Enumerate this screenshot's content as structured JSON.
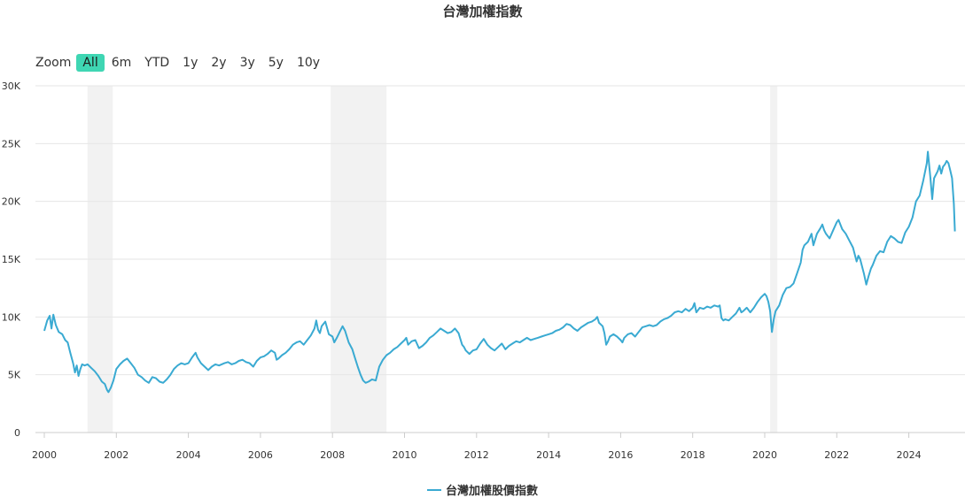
{
  "title": "台灣加權指數",
  "zoom": {
    "label": "Zoom",
    "buttons": [
      "All",
      "6m",
      "YTD",
      "1y",
      "2y",
      "3y",
      "5y",
      "10y"
    ],
    "active": "All"
  },
  "legend_label": "台灣加權股價指數",
  "colors": {
    "line": "#3aaad2",
    "active_button": "#3fd6b3",
    "recession_band": "#f2f2f2",
    "grid": "#e6e6e6"
  },
  "chart_data": {
    "type": "line",
    "title": "台灣加權指數",
    "xlabel": "",
    "ylabel": "",
    "xlim": [
      2000,
      2025.5
    ],
    "ylim": [
      0,
      30000
    ],
    "x_ticks": [
      "2000",
      "2002",
      "2004",
      "2006",
      "2008",
      "2010",
      "2012",
      "2014",
      "2016",
      "2018",
      "2020",
      "2022",
      "2024"
    ],
    "y_ticks": [
      {
        "value": 0,
        "label": "0"
      },
      {
        "value": 5000,
        "label": "5K"
      },
      {
        "value": 10000,
        "label": "10K"
      },
      {
        "value": 15000,
        "label": "15K"
      },
      {
        "value": 20000,
        "label": "20K"
      },
      {
        "value": 25000,
        "label": "25K"
      },
      {
        "value": 30000,
        "label": "30K"
      }
    ],
    "shaded_periods": [
      [
        2001.2,
        2001.9
      ],
      [
        2007.95,
        2009.5
      ],
      [
        2020.15,
        2020.35
      ]
    ],
    "grid": true,
    "legend_position": "bottom-center",
    "series": [
      {
        "name": "台灣加權股價指數",
        "points": [
          [
            2000.0,
            8800
          ],
          [
            2000.08,
            9700
          ],
          [
            2000.15,
            10100
          ],
          [
            2000.2,
            9000
          ],
          [
            2000.25,
            10200
          ],
          [
            2000.32,
            9300
          ],
          [
            2000.4,
            8700
          ],
          [
            2000.5,
            8500
          ],
          [
            2000.58,
            8000
          ],
          [
            2000.65,
            7800
          ],
          [
            2000.72,
            6900
          ],
          [
            2000.8,
            6000
          ],
          [
            2000.85,
            5200
          ],
          [
            2000.9,
            5800
          ],
          [
            2000.95,
            4900
          ],
          [
            2001.0,
            5500
          ],
          [
            2001.05,
            5900
          ],
          [
            2001.12,
            5800
          ],
          [
            2001.2,
            5900
          ],
          [
            2001.3,
            5600
          ],
          [
            2001.4,
            5300
          ],
          [
            2001.5,
            4900
          ],
          [
            2001.6,
            4400
          ],
          [
            2001.68,
            4200
          ],
          [
            2001.74,
            3700
          ],
          [
            2001.78,
            3500
          ],
          [
            2001.85,
            3900
          ],
          [
            2001.92,
            4500
          ],
          [
            2002.0,
            5500
          ],
          [
            2002.1,
            5900
          ],
          [
            2002.2,
            6200
          ],
          [
            2002.3,
            6400
          ],
          [
            2002.4,
            6000
          ],
          [
            2002.5,
            5600
          ],
          [
            2002.6,
            5000
          ],
          [
            2002.7,
            4800
          ],
          [
            2002.8,
            4500
          ],
          [
            2002.9,
            4300
          ],
          [
            2003.0,
            4800
          ],
          [
            2003.1,
            4700
          ],
          [
            2003.2,
            4400
          ],
          [
            2003.3,
            4300
          ],
          [
            2003.4,
            4600
          ],
          [
            2003.5,
            5000
          ],
          [
            2003.6,
            5500
          ],
          [
            2003.7,
            5800
          ],
          [
            2003.8,
            6000
          ],
          [
            2003.9,
            5900
          ],
          [
            2004.0,
            6000
          ],
          [
            2004.1,
            6500
          ],
          [
            2004.2,
            6900
          ],
          [
            2004.25,
            6500
          ],
          [
            2004.35,
            6000
          ],
          [
            2004.45,
            5700
          ],
          [
            2004.55,
            5400
          ],
          [
            2004.65,
            5700
          ],
          [
            2004.75,
            5900
          ],
          [
            2004.85,
            5800
          ],
          [
            2005.0,
            6000
          ],
          [
            2005.1,
            6100
          ],
          [
            2005.2,
            5900
          ],
          [
            2005.3,
            6000
          ],
          [
            2005.4,
            6200
          ],
          [
            2005.5,
            6300
          ],
          [
            2005.6,
            6100
          ],
          [
            2005.7,
            6000
          ],
          [
            2005.8,
            5700
          ],
          [
            2005.9,
            6200
          ],
          [
            2006.0,
            6500
          ],
          [
            2006.1,
            6600
          ],
          [
            2006.2,
            6800
          ],
          [
            2006.3,
            7100
          ],
          [
            2006.4,
            6900
          ],
          [
            2006.45,
            6300
          ],
          [
            2006.5,
            6400
          ],
          [
            2006.6,
            6700
          ],
          [
            2006.7,
            6900
          ],
          [
            2006.8,
            7200
          ],
          [
            2006.9,
            7600
          ],
          [
            2007.0,
            7800
          ],
          [
            2007.1,
            7900
          ],
          [
            2007.2,
            7600
          ],
          [
            2007.3,
            8000
          ],
          [
            2007.4,
            8400
          ],
          [
            2007.5,
            9000
          ],
          [
            2007.55,
            9700
          ],
          [
            2007.6,
            8900
          ],
          [
            2007.65,
            8600
          ],
          [
            2007.7,
            9200
          ],
          [
            2007.8,
            9600
          ],
          [
            2007.9,
            8500
          ],
          [
            2008.0,
            8300
          ],
          [
            2008.05,
            7800
          ],
          [
            2008.12,
            8200
          ],
          [
            2008.2,
            8700
          ],
          [
            2008.28,
            9200
          ],
          [
            2008.35,
            8800
          ],
          [
            2008.45,
            7800
          ],
          [
            2008.55,
            7200
          ],
          [
            2008.62,
            6500
          ],
          [
            2008.7,
            5700
          ],
          [
            2008.78,
            5000
          ],
          [
            2008.85,
            4500
          ],
          [
            2008.92,
            4300
          ],
          [
            2009.0,
            4400
          ],
          [
            2009.1,
            4600
          ],
          [
            2009.2,
            4500
          ],
          [
            2009.3,
            5700
          ],
          [
            2009.4,
            6300
          ],
          [
            2009.5,
            6700
          ],
          [
            2009.6,
            6900
          ],
          [
            2009.7,
            7200
          ],
          [
            2009.8,
            7400
          ],
          [
            2009.9,
            7700
          ],
          [
            2010.0,
            8000
          ],
          [
            2010.05,
            8200
          ],
          [
            2010.1,
            7600
          ],
          [
            2010.2,
            7900
          ],
          [
            2010.3,
            8000
          ],
          [
            2010.4,
            7300
          ],
          [
            2010.5,
            7500
          ],
          [
            2010.6,
            7800
          ],
          [
            2010.7,
            8200
          ],
          [
            2010.8,
            8400
          ],
          [
            2010.9,
            8700
          ],
          [
            2011.0,
            9000
          ],
          [
            2011.1,
            8800
          ],
          [
            2011.2,
            8600
          ],
          [
            2011.3,
            8700
          ],
          [
            2011.4,
            9000
          ],
          [
            2011.5,
            8600
          ],
          [
            2011.6,
            7600
          ],
          [
            2011.65,
            7400
          ],
          [
            2011.7,
            7100
          ],
          [
            2011.8,
            6800
          ],
          [
            2011.9,
            7100
          ],
          [
            2012.0,
            7200
          ],
          [
            2012.1,
            7700
          ],
          [
            2012.2,
            8100
          ],
          [
            2012.3,
            7600
          ],
          [
            2012.4,
            7300
          ],
          [
            2012.5,
            7100
          ],
          [
            2012.6,
            7400
          ],
          [
            2012.7,
            7700
          ],
          [
            2012.8,
            7200
          ],
          [
            2012.9,
            7500
          ],
          [
            2013.0,
            7700
          ],
          [
            2013.1,
            7900
          ],
          [
            2013.2,
            7800
          ],
          [
            2013.3,
            8000
          ],
          [
            2013.4,
            8200
          ],
          [
            2013.5,
            8000
          ],
          [
            2013.6,
            8100
          ],
          [
            2013.7,
            8200
          ],
          [
            2013.8,
            8300
          ],
          [
            2013.9,
            8400
          ],
          [
            2014.0,
            8500
          ],
          [
            2014.1,
            8600
          ],
          [
            2014.2,
            8800
          ],
          [
            2014.3,
            8900
          ],
          [
            2014.4,
            9100
          ],
          [
            2014.5,
            9400
          ],
          [
            2014.6,
            9300
          ],
          [
            2014.7,
            9000
          ],
          [
            2014.8,
            8800
          ],
          [
            2014.9,
            9100
          ],
          [
            2015.0,
            9300
          ],
          [
            2015.1,
            9500
          ],
          [
            2015.2,
            9600
          ],
          [
            2015.3,
            9800
          ],
          [
            2015.35,
            10000
          ],
          [
            2015.4,
            9500
          ],
          [
            2015.5,
            9200
          ],
          [
            2015.55,
            8600
          ],
          [
            2015.6,
            7600
          ],
          [
            2015.65,
            7900
          ],
          [
            2015.7,
            8300
          ],
          [
            2015.8,
            8500
          ],
          [
            2015.9,
            8300
          ],
          [
            2016.0,
            8000
          ],
          [
            2016.05,
            7800
          ],
          [
            2016.1,
            8200
          ],
          [
            2016.2,
            8500
          ],
          [
            2016.3,
            8600
          ],
          [
            2016.4,
            8300
          ],
          [
            2016.5,
            8700
          ],
          [
            2016.6,
            9100
          ],
          [
            2016.7,
            9200
          ],
          [
            2016.8,
            9300
          ],
          [
            2016.9,
            9200
          ],
          [
            2017.0,
            9300
          ],
          [
            2017.1,
            9600
          ],
          [
            2017.2,
            9800
          ],
          [
            2017.3,
            9900
          ],
          [
            2017.4,
            10100
          ],
          [
            2017.5,
            10400
          ],
          [
            2017.6,
            10500
          ],
          [
            2017.7,
            10400
          ],
          [
            2017.8,
            10700
          ],
          [
            2017.9,
            10500
          ],
          [
            2018.0,
            10800
          ],
          [
            2018.05,
            11200
          ],
          [
            2018.1,
            10400
          ],
          [
            2018.2,
            10800
          ],
          [
            2018.3,
            10700
          ],
          [
            2018.4,
            10900
          ],
          [
            2018.5,
            10800
          ],
          [
            2018.6,
            11000
          ],
          [
            2018.7,
            10900
          ],
          [
            2018.75,
            11000
          ],
          [
            2018.8,
            9900
          ],
          [
            2018.85,
            9700
          ],
          [
            2018.9,
            9800
          ],
          [
            2019.0,
            9700
          ],
          [
            2019.1,
            10000
          ],
          [
            2019.2,
            10300
          ],
          [
            2019.3,
            10800
          ],
          [
            2019.35,
            10400
          ],
          [
            2019.4,
            10500
          ],
          [
            2019.5,
            10800
          ],
          [
            2019.6,
            10400
          ],
          [
            2019.7,
            10800
          ],
          [
            2019.8,
            11300
          ],
          [
            2019.9,
            11700
          ],
          [
            2020.0,
            12000
          ],
          [
            2020.05,
            11800
          ],
          [
            2020.1,
            11300
          ],
          [
            2020.15,
            10500
          ],
          [
            2020.2,
            8700
          ],
          [
            2020.25,
            9800
          ],
          [
            2020.3,
            10500
          ],
          [
            2020.4,
            11000
          ],
          [
            2020.5,
            11900
          ],
          [
            2020.6,
            12500
          ],
          [
            2020.7,
            12600
          ],
          [
            2020.8,
            12900
          ],
          [
            2020.9,
            13800
          ],
          [
            2021.0,
            14700
          ],
          [
            2021.05,
            15800
          ],
          [
            2021.1,
            16200
          ],
          [
            2021.2,
            16500
          ],
          [
            2021.3,
            17200
          ],
          [
            2021.35,
            16200
          ],
          [
            2021.45,
            17200
          ],
          [
            2021.55,
            17700
          ],
          [
            2021.6,
            18000
          ],
          [
            2021.65,
            17500
          ],
          [
            2021.7,
            17200
          ],
          [
            2021.8,
            16800
          ],
          [
            2021.9,
            17500
          ],
          [
            2022.0,
            18200
          ],
          [
            2022.05,
            18400
          ],
          [
            2022.15,
            17600
          ],
          [
            2022.25,
            17200
          ],
          [
            2022.35,
            16600
          ],
          [
            2022.45,
            16000
          ],
          [
            2022.55,
            14800
          ],
          [
            2022.6,
            15300
          ],
          [
            2022.65,
            15000
          ],
          [
            2022.75,
            13800
          ],
          [
            2022.82,
            12800
          ],
          [
            2022.88,
            13500
          ],
          [
            2022.95,
            14200
          ],
          [
            2023.0,
            14500
          ],
          [
            2023.1,
            15300
          ],
          [
            2023.2,
            15700
          ],
          [
            2023.3,
            15600
          ],
          [
            2023.4,
            16500
          ],
          [
            2023.5,
            17000
          ],
          [
            2023.6,
            16800
          ],
          [
            2023.7,
            16500
          ],
          [
            2023.8,
            16400
          ],
          [
            2023.9,
            17300
          ],
          [
            2024.0,
            17800
          ],
          [
            2024.1,
            18600
          ],
          [
            2024.2,
            20000
          ],
          [
            2024.3,
            20500
          ],
          [
            2024.4,
            21800
          ],
          [
            2024.5,
            23300
          ],
          [
            2024.53,
            24300
          ],
          [
            2024.6,
            22000
          ],
          [
            2024.65,
            20200
          ],
          [
            2024.7,
            22000
          ],
          [
            2024.8,
            22600
          ],
          [
            2024.85,
            23100
          ],
          [
            2024.9,
            22400
          ],
          [
            2024.95,
            23000
          ],
          [
            2025.0,
            23200
          ],
          [
            2025.05,
            23500
          ],
          [
            2025.1,
            23300
          ],
          [
            2025.15,
            22700
          ],
          [
            2025.2,
            22000
          ],
          [
            2025.25,
            19800
          ],
          [
            2025.28,
            17400
          ]
        ]
      }
    ]
  }
}
